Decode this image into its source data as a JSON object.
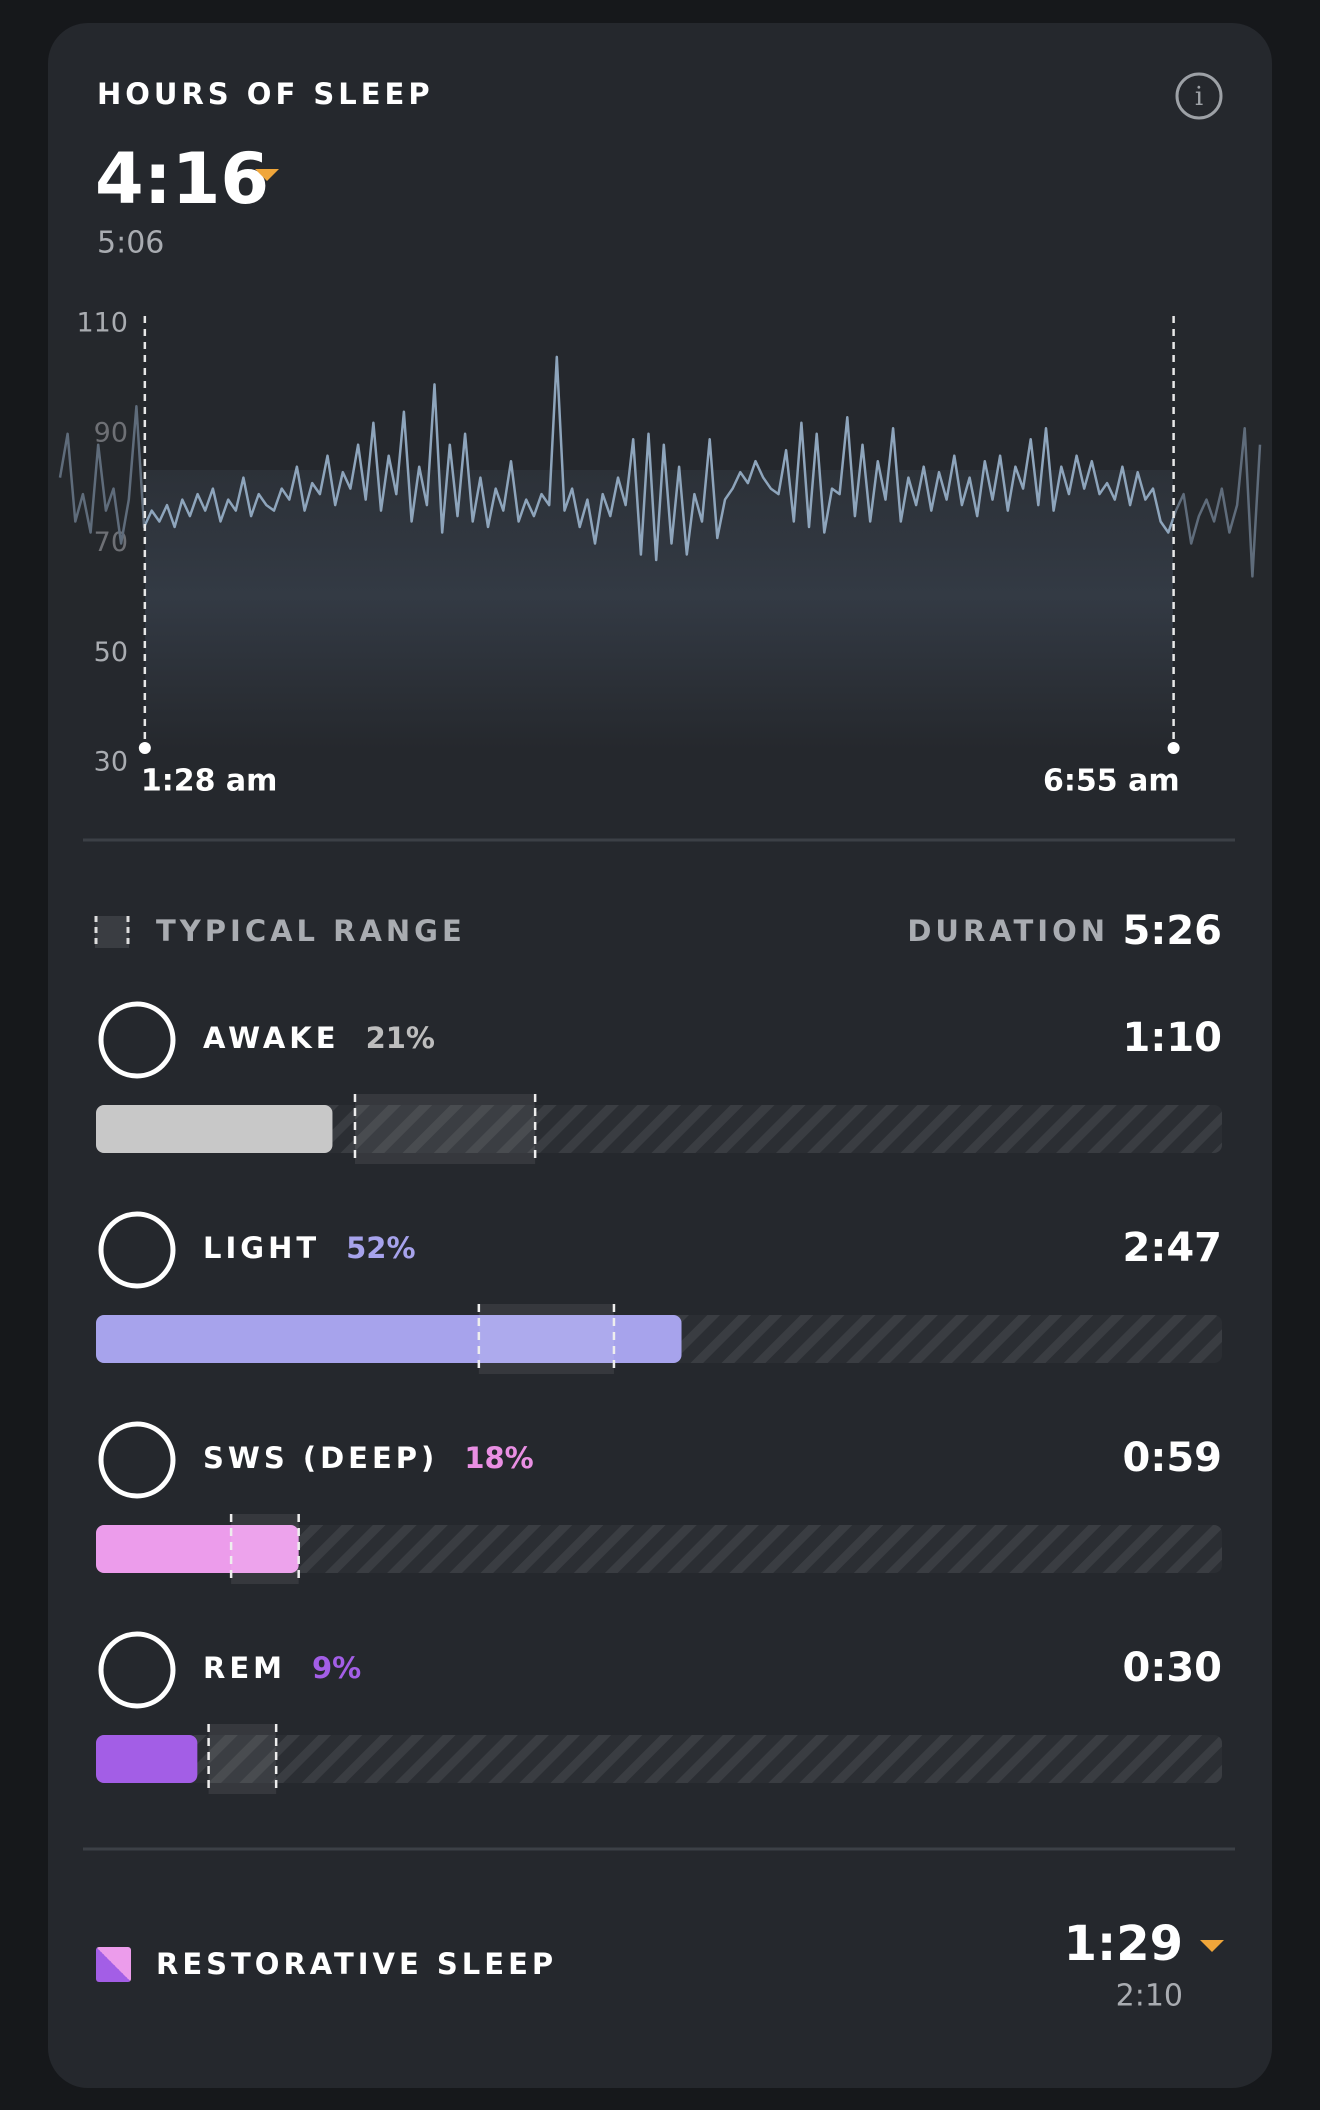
{
  "header": {
    "title": "HOURS OF SLEEP",
    "value": "4:16",
    "baseline": "5:06"
  },
  "chart_data": {
    "type": "line",
    "color": "#8ea5bc",
    "ylim": [
      30,
      110
    ],
    "yticks": [
      30,
      50,
      70,
      90,
      110
    ],
    "start_label": "1:28 am",
    "end_label": "6:55 am",
    "values": [
      82,
      90,
      74,
      79,
      72,
      88,
      76,
      80,
      70,
      78,
      95,
      73,
      76,
      74,
      77,
      73,
      78,
      75,
      79,
      76,
      80,
      74,
      78,
      76,
      82,
      75,
      79,
      77,
      76,
      80,
      78,
      84,
      76,
      81,
      79,
      86,
      77,
      83,
      80,
      88,
      78,
      92,
      76,
      86,
      79,
      94,
      74,
      84,
      77,
      99,
      72,
      88,
      75,
      90,
      74,
      82,
      73,
      80,
      76,
      85,
      74,
      78,
      75,
      79,
      77,
      104,
      76,
      80,
      73,
      78,
      70,
      79,
      75,
      82,
      77,
      89,
      68,
      90,
      67,
      88,
      70,
      84,
      68,
      79,
      74,
      89,
      71,
      78,
      80,
      83,
      81,
      85,
      82,
      80,
      79,
      87,
      74,
      92,
      73,
      90,
      72,
      80,
      79,
      93,
      75,
      88,
      74,
      85,
      78,
      91,
      74,
      82,
      77,
      84,
      76,
      83,
      78,
      86,
      77,
      82,
      75,
      85,
      78,
      86,
      76,
      84,
      80,
      89,
      77,
      91,
      76,
      84,
      79,
      86,
      80,
      85,
      79,
      81,
      78,
      84,
      77,
      83,
      78,
      80,
      74,
      72,
      76,
      79,
      70,
      75,
      78,
      74,
      80,
      72,
      77,
      91,
      64,
      88
    ]
  },
  "legend": {
    "typical_range": "TYPICAL RANGE",
    "duration_label": "DURATION",
    "duration": "5:26"
  },
  "stages": {
    "xlim": [
      0,
      100
    ],
    "items": [
      {
        "name": "AWAKE",
        "percent": 21,
        "percent_label": "21%",
        "duration": "1:10",
        "color": "#c8c8c8",
        "label_color": "#bdbdbd",
        "typical_range": [
          23,
          39
        ]
      },
      {
        "name": "LIGHT",
        "percent": 52,
        "percent_label": "52%",
        "duration": "2:47",
        "color": "#a7a3ec",
        "label_color": "#a7a3ec",
        "typical_range": [
          34,
          46
        ]
      },
      {
        "name": "SWS (DEEP)",
        "percent": 18,
        "percent_label": "18%",
        "duration": "0:59",
        "color": "#ec9ceb",
        "label_color": "#e98fe3",
        "typical_range": [
          12,
          18
        ]
      },
      {
        "name": "REM",
        "percent": 9,
        "percent_label": "9%",
        "duration": "0:30",
        "color": "#a35ee6",
        "label_color": "#a35ee6",
        "typical_range": [
          10,
          16
        ]
      }
    ]
  },
  "restorative": {
    "title": "RESTORATIVE SLEEP",
    "value": "1:29",
    "baseline": "2:10"
  }
}
